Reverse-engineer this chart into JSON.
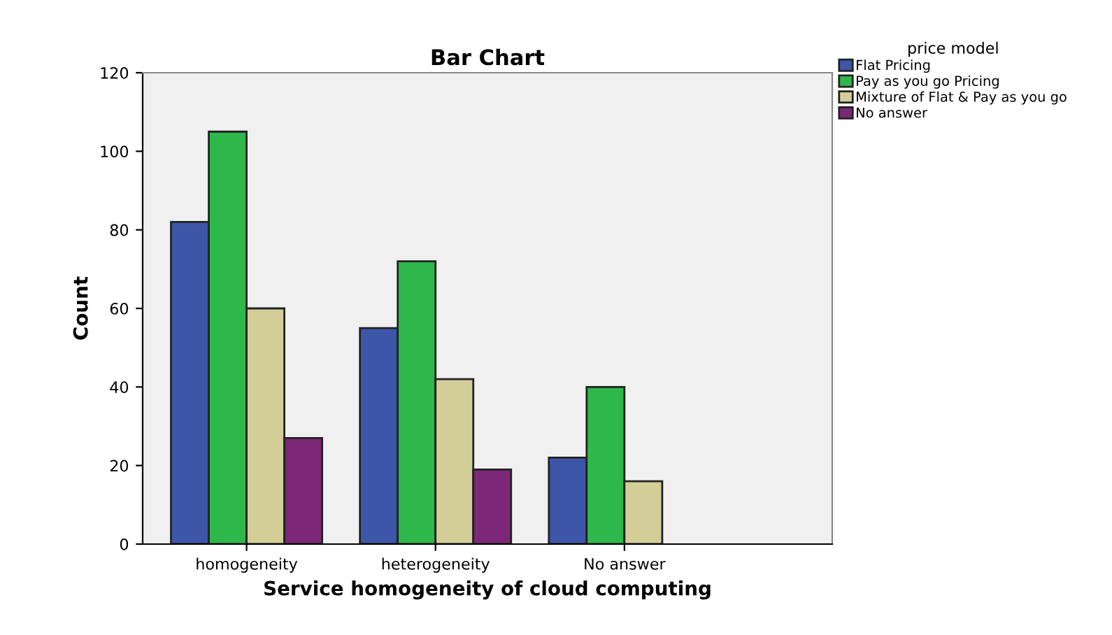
{
  "chart_data": {
    "type": "bar",
    "title": "Bar Chart",
    "xlabel": "Service homogeneity of cloud computing",
    "ylabel": "Count",
    "legend_title": "price model",
    "categories": [
      "homogeneity",
      "heterogeneity",
      "No answer"
    ],
    "series": [
      {
        "name": "Flat Pricing",
        "color": "#3d56a8",
        "values": [
          82,
          55,
          22
        ]
      },
      {
        "name": "Pay as you go Pricing",
        "color": "#2fb84a",
        "values": [
          105,
          72,
          40
        ]
      },
      {
        "name": "Mixture of Flat & Pay as you go",
        "color": "#d3ce98",
        "values": [
          60,
          42,
          16
        ]
      },
      {
        "name": "No answer",
        "color": "#7d2778",
        "values": [
          27,
          19,
          null
        ]
      }
    ],
    "ylim": [
      0,
      120
    ],
    "yticks": [
      0,
      20,
      40,
      60,
      80,
      100,
      120
    ],
    "grid": false,
    "legend": "top right"
  }
}
